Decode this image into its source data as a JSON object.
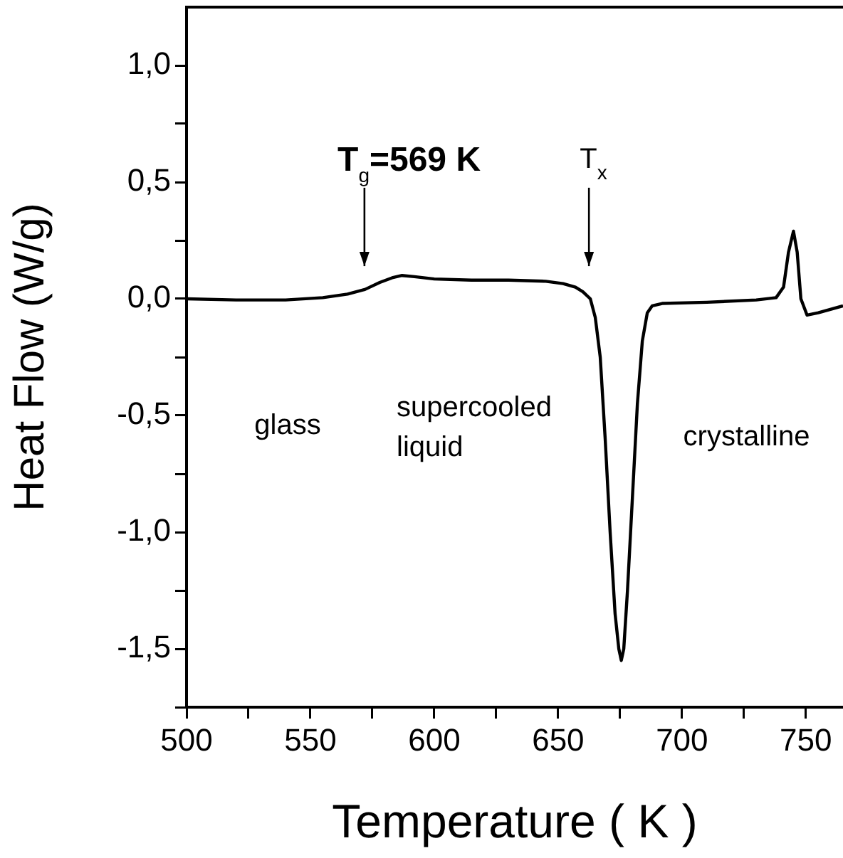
{
  "chart_data": {
    "type": "line",
    "xlabel": "Temperature ( K )",
    "ylabel": "Heat Flow (W/g)",
    "x": [
      500,
      520,
      540,
      555,
      565,
      572,
      578,
      583,
      587,
      592,
      600,
      615,
      630,
      645,
      652,
      657,
      660,
      663,
      665,
      667,
      669,
      671,
      673,
      674.5,
      675.5,
      676.5,
      678,
      680,
      682,
      684,
      686,
      688,
      692,
      710,
      730,
      738,
      741,
      743,
      745,
      746.5,
      748,
      750.5,
      755,
      765
    ],
    "series": [
      {
        "color": "#000000",
        "values": [
          0,
          -0.005,
          -0.005,
          0.005,
          0.02,
          0.04,
          0.07,
          0.09,
          0.1,
          0.095,
          0.085,
          0.08,
          0.08,
          0.075,
          0.065,
          0.05,
          0.03,
          0,
          -0.08,
          -0.25,
          -0.6,
          -1.0,
          -1.35,
          -1.5,
          -1.55,
          -1.5,
          -1.25,
          -0.85,
          -0.45,
          -0.18,
          -0.06,
          -0.03,
          -0.02,
          -0.015,
          -0.005,
          0.005,
          0.05,
          0.2,
          0.29,
          0.2,
          0.0,
          -0.07,
          -0.06,
          -0.03
        ]
      }
    ],
    "xlim": [
      500,
      765
    ],
    "ylim": [
      -1.75,
      1.25
    ],
    "xticks": [
      500,
      {
        "value": 525,
        "label": null
      },
      550,
      {
        "value": 575,
        "label": null
      },
      600,
      {
        "value": 625,
        "label": null
      },
      650,
      {
        "value": 675,
        "label": null
      },
      700,
      {
        "value": 725,
        "label": null
      },
      750
    ],
    "yticks": [
      {
        "value": -1.75,
        "label": null
      },
      {
        "value": -1.5,
        "label": "-1,5"
      },
      {
        "value": -1.25,
        "label": null
      },
      {
        "value": -1.0,
        "label": "-1,0"
      },
      {
        "value": -0.75,
        "label": null
      },
      {
        "value": -0.5,
        "label": "-0,5"
      },
      {
        "value": -0.25,
        "label": null
      },
      {
        "value": 0,
        "label": "0,0"
      },
      {
        "value": 0.25,
        "label": null
      },
      {
        "value": 0.5,
        "label": "0,5"
      },
      {
        "value": 0.75,
        "label": null
      },
      {
        "value": 1.0,
        "label": "1,0"
      }
    ],
    "grid": false,
    "legend": false,
    "marker": "none",
    "line_style": "solid",
    "annotations": [
      "T$_{g}$=569 K",
      "T$_{x}$",
      "glass",
      "supercooled\nliquid",
      "crystalline"
    ]
  }
}
